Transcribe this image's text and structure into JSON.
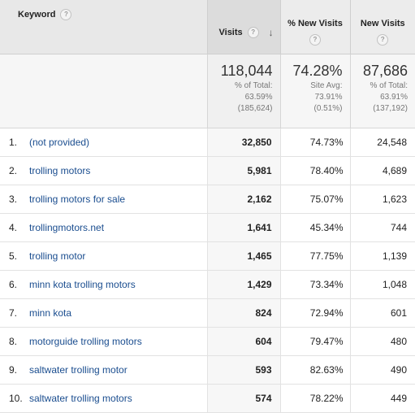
{
  "header": {
    "keyword_label": "Keyword",
    "visits_label": "Visits",
    "sort_arrow": "↓",
    "pct_new_visits_label": "% New Visits",
    "new_visits_label": "New Visits",
    "help_glyph": "?"
  },
  "totals": {
    "visits": {
      "value": "118,044",
      "line1": "% of Total:",
      "line2": "63.59%",
      "line3": "(185,624)"
    },
    "pct_new_visits": {
      "value": "74.28%",
      "line1": "Site Avg:",
      "line2": "73.91%",
      "line3": "(0.51%)"
    },
    "new_visits": {
      "value": "87,686",
      "line1": "% of Total:",
      "line2": "63.91%",
      "line3": "(137,192)"
    }
  },
  "rows": [
    {
      "index": "1.",
      "keyword": "(not provided)",
      "visits": "32,850",
      "pct_new": "74.73%",
      "new_visits": "24,548"
    },
    {
      "index": "2.",
      "keyword": "trolling motors",
      "visits": "5,981",
      "pct_new": "78.40%",
      "new_visits": "4,689"
    },
    {
      "index": "3.",
      "keyword": "trolling motors for sale",
      "visits": "2,162",
      "pct_new": "75.07%",
      "new_visits": "1,623"
    },
    {
      "index": "4.",
      "keyword": "trollingmotors.net",
      "visits": "1,641",
      "pct_new": "45.34%",
      "new_visits": "744"
    },
    {
      "index": "5.",
      "keyword": "trolling motor",
      "visits": "1,465",
      "pct_new": "77.75%",
      "new_visits": "1,139"
    },
    {
      "index": "6.",
      "keyword": "minn kota trolling motors",
      "visits": "1,429",
      "pct_new": "73.34%",
      "new_visits": "1,048"
    },
    {
      "index": "7.",
      "keyword": "minn kota",
      "visits": "824",
      "pct_new": "72.94%",
      "new_visits": "601"
    },
    {
      "index": "8.",
      "keyword": "motorguide trolling motors",
      "visits": "604",
      "pct_new": "79.47%",
      "new_visits": "480"
    },
    {
      "index": "9.",
      "keyword": "saltwater trolling motor",
      "visits": "593",
      "pct_new": "82.63%",
      "new_visits": "490"
    },
    {
      "index": "10.",
      "keyword": "saltwater trolling motors",
      "visits": "574",
      "pct_new": "78.22%",
      "new_visits": "449"
    }
  ]
}
